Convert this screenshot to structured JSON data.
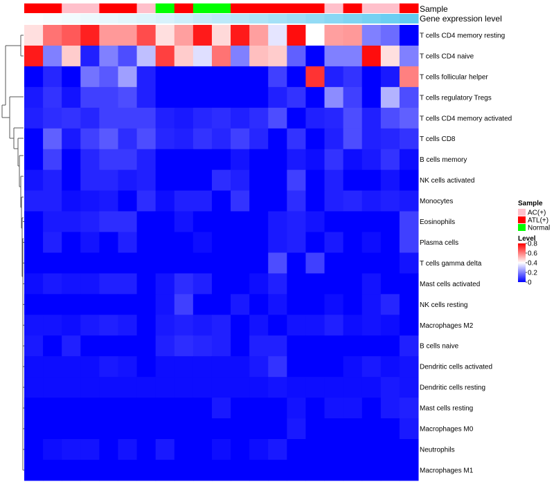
{
  "chart_data": {
    "type": "heatmap",
    "title": "",
    "annotation_labels": {
      "sample": "Sample",
      "gene": "Gene expression level"
    },
    "sample_groups": [
      "ATL(+)",
      "ATL(+)",
      "AC(+)",
      "AC(+)",
      "ATL(+)",
      "ATL(+)",
      "AC(+)",
      "Normal",
      "ATL(+)",
      "Normal",
      "Normal",
      "ATL(+)",
      "ATL(+)",
      "ATL(+)",
      "ATL(+)",
      "ATL(+)",
      "AC(+)",
      "ATL(+)",
      "AC(+)",
      "AC(+)",
      "ATL(+)"
    ],
    "sample_colors": {
      "AC(+)": "#ffc0cb",
      "ATL(+)": "#ff0000",
      "Normal": "#00ff00"
    },
    "gene_expression_levels": [
      0.02,
      0.05,
      0.08,
      0.11,
      0.14,
      0.17,
      0.2,
      0.24,
      0.3,
      0.36,
      0.4,
      0.44,
      0.5,
      0.55,
      0.6,
      0.66,
      0.72,
      0.78,
      0.84,
      0.9,
      0.96
    ],
    "gene_colors": {
      "low": "#ffffff",
      "high": "#5bc8f0"
    },
    "rows": [
      "T cells CD4 memory resting",
      "T cells CD4 naive",
      "T cells follicular helper",
      "T cells regulatory  Tregs",
      "T cells CD4 memory activated",
      "T cells CD8",
      "B cells memory",
      "NK cells activated",
      "Monocytes",
      "Eosinophils",
      "Plasma cells",
      "T cells gamma delta",
      "Mast cells activated",
      "NK cells resting",
      "Macrophages M2",
      "B cells naive",
      "Dendritic cells activated",
      "Dendritic cells resting",
      "Mast cells resting",
      "Macrophages M0",
      "Neutrophils",
      "Macrophages M1"
    ],
    "values": [
      [
        0.45,
        0.62,
        0.66,
        0.75,
        0.56,
        0.56,
        0.68,
        0.45,
        0.55,
        0.76,
        0.46,
        0.76,
        0.55,
        0.36,
        0.78,
        0.4,
        0.55,
        0.56,
        0.2,
        0.17,
        0.0
      ],
      [
        0.76,
        0.2,
        0.48,
        0.05,
        0.2,
        0.12,
        0.3,
        0.7,
        0.48,
        0.35,
        0.62,
        0.2,
        0.5,
        0.48,
        0.15,
        0.0,
        0.2,
        0.2,
        0.78,
        0.45,
        0.2
      ],
      [
        0.0,
        0.06,
        0.0,
        0.18,
        0.14,
        0.25,
        0.05,
        0.0,
        0.0,
        0.0,
        0.0,
        0.0,
        0.0,
        0.1,
        0.0,
        0.72,
        0.05,
        0.08,
        0.0,
        0.04,
        0.6
      ],
      [
        0.04,
        0.08,
        0.03,
        0.1,
        0.1,
        0.12,
        0.05,
        0.0,
        0.0,
        0.0,
        0.0,
        0.0,
        0.0,
        0.05,
        0.08,
        0.0,
        0.22,
        0.1,
        0.0,
        0.28,
        0.12
      ],
      [
        0.05,
        0.07,
        0.08,
        0.06,
        0.1,
        0.1,
        0.1,
        0.05,
        0.04,
        0.06,
        0.07,
        0.05,
        0.07,
        0.12,
        0.0,
        0.05,
        0.06,
        0.12,
        0.05,
        0.12,
        0.15
      ],
      [
        0.0,
        0.15,
        0.04,
        0.1,
        0.14,
        0.07,
        0.12,
        0.06,
        0.05,
        0.08,
        0.06,
        0.1,
        0.06,
        0.0,
        0.08,
        0.0,
        0.05,
        0.12,
        0.05,
        0.06,
        0.08
      ],
      [
        0.0,
        0.1,
        0.0,
        0.06,
        0.09,
        0.09,
        0.05,
        0.0,
        0.0,
        0.0,
        0.0,
        0.03,
        0.0,
        0.0,
        0.04,
        0.02,
        0.08,
        0.02,
        0.04,
        0.08,
        0.02
      ],
      [
        0.03,
        0.05,
        0.0,
        0.06,
        0.06,
        0.04,
        0.05,
        0.0,
        0.0,
        0.0,
        0.07,
        0.05,
        0.0,
        0.0,
        0.1,
        0.0,
        0.05,
        0.0,
        0.0,
        0.03,
        0.0
      ],
      [
        0.05,
        0.05,
        0.02,
        0.03,
        0.04,
        0.0,
        0.07,
        0.02,
        0.05,
        0.05,
        0.0,
        0.08,
        0.0,
        0.0,
        0.07,
        0.0,
        0.05,
        0.06,
        0.04,
        0.05,
        0.04
      ],
      [
        0.0,
        0.04,
        0.04,
        0.05,
        0.07,
        0.07,
        0.0,
        0.0,
        0.03,
        0.0,
        0.0,
        0.0,
        0.0,
        0.04,
        0.05,
        0.03,
        0.0,
        0.0,
        0.0,
        0.0,
        0.1
      ],
      [
        0.0,
        0.05,
        0.0,
        0.03,
        0.0,
        0.05,
        0.0,
        0.0,
        0.0,
        0.02,
        0.0,
        0.0,
        0.0,
        0.04,
        0.05,
        0.0,
        0.04,
        0.0,
        0.02,
        0.0,
        0.1
      ],
      [
        0.0,
        0.0,
        0.0,
        0.0,
        0.0,
        0.0,
        0.0,
        0.0,
        0.0,
        0.0,
        0.0,
        0.0,
        0.0,
        0.12,
        0.0,
        0.1,
        0.0,
        0.0,
        0.0,
        0.0,
        0.03
      ],
      [
        0.02,
        0.04,
        0.03,
        0.03,
        0.05,
        0.05,
        0.0,
        0.03,
        0.07,
        0.05,
        0.0,
        0.0,
        0.02,
        0.05,
        0.0,
        0.0,
        0.0,
        0.0,
        0.03,
        0.0,
        0.0
      ],
      [
        0.0,
        0.0,
        0.0,
        0.0,
        0.0,
        0.0,
        0.0,
        0.03,
        0.1,
        0.0,
        0.0,
        0.04,
        0.0,
        0.03,
        0.0,
        0.0,
        0.02,
        0.0,
        0.03,
        0.06,
        0.0
      ],
      [
        0.03,
        0.03,
        0.02,
        0.04,
        0.05,
        0.04,
        0.0,
        0.04,
        0.05,
        0.04,
        0.05,
        0.0,
        0.03,
        0.0,
        0.03,
        0.03,
        0.05,
        0.02,
        0.03,
        0.02,
        0.0
      ],
      [
        0.04,
        0.0,
        0.05,
        0.0,
        0.0,
        0.0,
        0.0,
        0.05,
        0.07,
        0.06,
        0.05,
        0.0,
        0.05,
        0.05,
        0.0,
        0.0,
        0.0,
        0.0,
        0.0,
        0.0,
        0.05
      ],
      [
        0.02,
        0.02,
        0.02,
        0.02,
        0.04,
        0.03,
        0.0,
        0.02,
        0.02,
        0.02,
        0.02,
        0.02,
        0.04,
        0.08,
        0.0,
        0.0,
        0.0,
        0.02,
        0.04,
        0.02,
        0.03
      ],
      [
        0.02,
        0.02,
        0.02,
        0.02,
        0.02,
        0.02,
        0.02,
        0.02,
        0.02,
        0.02,
        0.02,
        0.02,
        0.02,
        0.03,
        0.02,
        0.02,
        0.02,
        0.02,
        0.02,
        0.04,
        0.03
      ],
      [
        0.0,
        0.0,
        0.0,
        0.0,
        0.0,
        0.0,
        0.0,
        0.0,
        0.0,
        0.0,
        0.04,
        0.0,
        0.0,
        0.0,
        0.03,
        0.0,
        0.03,
        0.03,
        0.0,
        0.04,
        0.05
      ],
      [
        0.0,
        0.0,
        0.0,
        0.0,
        0.0,
        0.0,
        0.0,
        0.0,
        0.0,
        0.0,
        0.0,
        0.0,
        0.0,
        0.0,
        0.04,
        0.0,
        0.0,
        0.0,
        0.0,
        0.0,
        0.04
      ],
      [
        0.0,
        0.02,
        0.03,
        0.03,
        0.0,
        0.03,
        0.0,
        0.04,
        0.0,
        0.0,
        0.02,
        0.0,
        0.02,
        0.04,
        0.0,
        0.0,
        0.0,
        0.0,
        0.0,
        0.0,
        0.0
      ],
      [
        0.0,
        0.0,
        0.0,
        0.0,
        0.0,
        0.0,
        0.0,
        0.0,
        0.0,
        0.0,
        0.0,
        0.0,
        0.0,
        0.0,
        0.0,
        0.0,
        0.0,
        0.0,
        0.0,
        0.0,
        0.0
      ]
    ],
    "color_scale": {
      "low": "#0000ff",
      "mid": "#ffffff",
      "high": "#ff0000",
      "midpoint": 0.4,
      "range": [
        0,
        0.8
      ]
    },
    "legend": {
      "sample_title": "Sample",
      "sample_items": [
        "AC(+)",
        "ATL(+)",
        "Normal"
      ],
      "level_title": "Level",
      "level_ticks": [
        "0.8",
        "0.6",
        "0.4",
        "0.2",
        "0"
      ],
      "level_tick_values": [
        0.8,
        0.6,
        0.4,
        0.2,
        0.0
      ],
      "placement": "right"
    },
    "row_dendrogram": "left",
    "xlabel": "",
    "ylabel": ""
  }
}
